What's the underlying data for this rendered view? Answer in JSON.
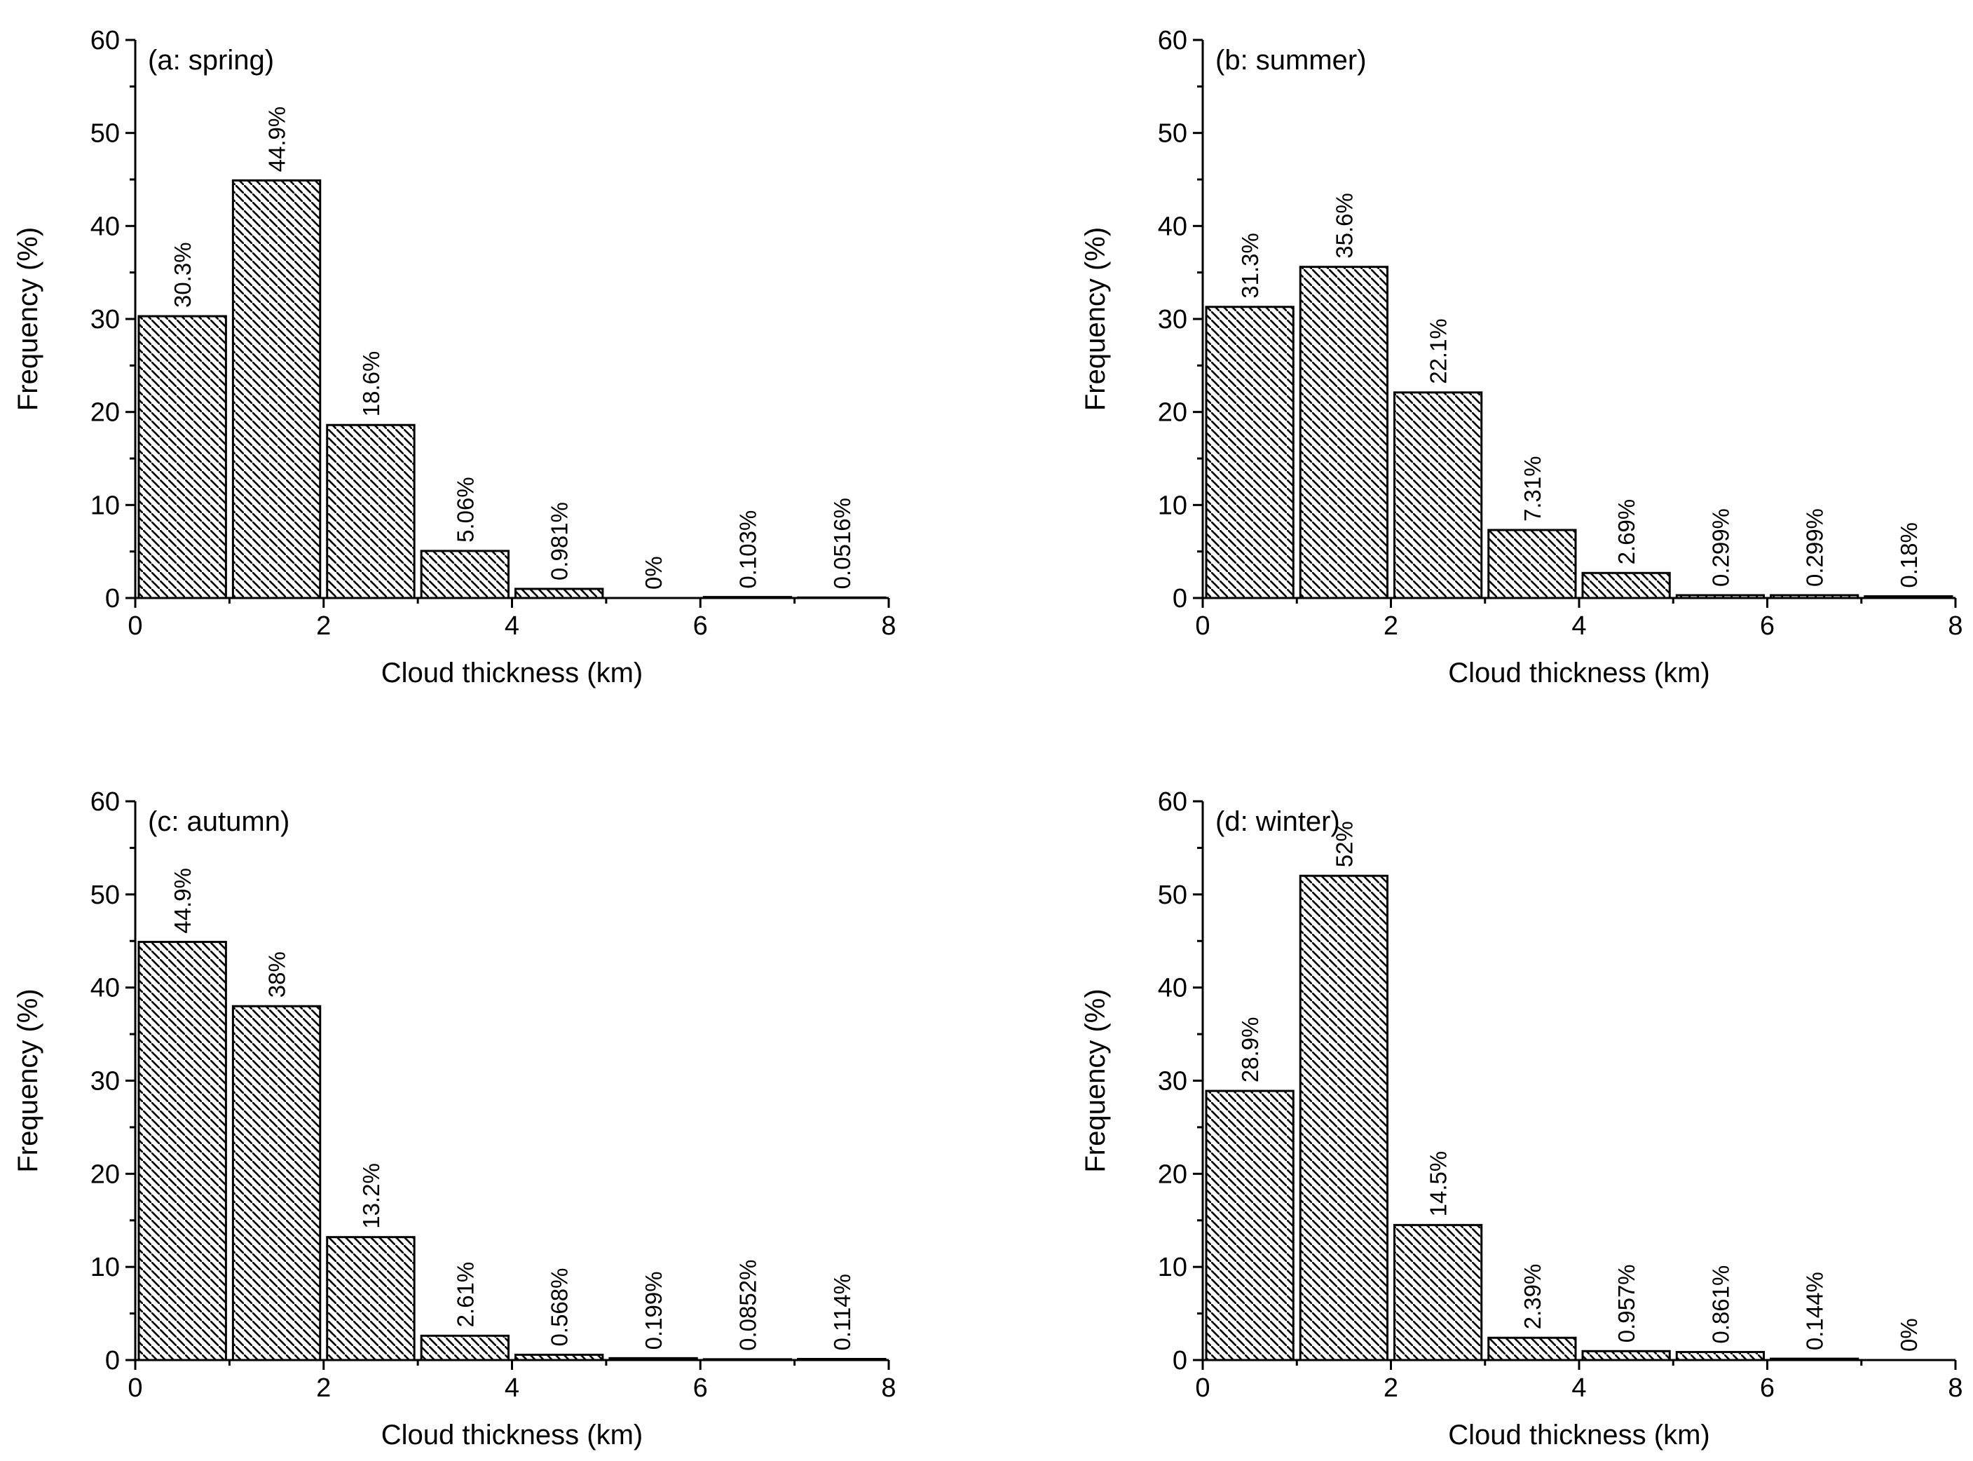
{
  "chart_data": [
    {
      "type": "bar",
      "title": "(a: spring)",
      "xlabel": "Cloud thickness (km)",
      "ylabel": "Frequency (%)",
      "x": [
        0.5,
        1.5,
        2.5,
        3.5,
        4.5,
        5.5,
        6.5,
        7.5
      ],
      "bin_width": 1,
      "values": [
        30.3,
        44.9,
        18.6,
        5.06,
        0.981,
        0,
        0.103,
        0.0516
      ],
      "labels": [
        "30.3%",
        "44.9%",
        "18.6%",
        "5.06%",
        "0.981%",
        "0%",
        "0.103%",
        "0.0516%"
      ],
      "xlim": [
        0,
        8
      ],
      "ylim": [
        0,
        60
      ],
      "xticks": [
        "0",
        "2",
        "4",
        "6",
        "8"
      ],
      "yticks": [
        "0",
        "10",
        "20",
        "30",
        "40",
        "50",
        "60"
      ]
    },
    {
      "type": "bar",
      "title": "(b: summer)",
      "xlabel": "Cloud thickness (km)",
      "ylabel": "Frequency (%)",
      "x": [
        0.5,
        1.5,
        2.5,
        3.5,
        4.5,
        5.5,
        6.5,
        7.5
      ],
      "bin_width": 1,
      "values": [
        31.3,
        35.6,
        22.1,
        7.31,
        2.69,
        0.299,
        0.299,
        0.18
      ],
      "labels": [
        "31.3%",
        "35.6%",
        "22.1%",
        "7.31%",
        "2.69%",
        "0.299%",
        "0.299%",
        "0.18%"
      ],
      "xlim": [
        0,
        8
      ],
      "ylim": [
        0,
        60
      ],
      "xticks": [
        "0",
        "2",
        "4",
        "6",
        "8"
      ],
      "yticks": [
        "0",
        "10",
        "20",
        "30",
        "40",
        "50",
        "60"
      ]
    },
    {
      "type": "bar",
      "title": "(c: autumn)",
      "xlabel": "Cloud thickness (km)",
      "ylabel": "Frequency (%)",
      "x": [
        0.5,
        1.5,
        2.5,
        3.5,
        4.5,
        5.5,
        6.5,
        7.5
      ],
      "bin_width": 1,
      "values": [
        44.9,
        38,
        13.2,
        2.61,
        0.568,
        0.199,
        0.0852,
        0.114
      ],
      "labels": [
        "44.9%",
        "38%",
        "13.2%",
        "2.61%",
        "0.568%",
        "0.199%",
        "0.0852%",
        "0.114%"
      ],
      "xlim": [
        0,
        8
      ],
      "ylim": [
        0,
        60
      ],
      "xticks": [
        "0",
        "2",
        "4",
        "6",
        "8"
      ],
      "yticks": [
        "0",
        "10",
        "20",
        "30",
        "40",
        "50",
        "60"
      ]
    },
    {
      "type": "bar",
      "title": "(d: winter)",
      "xlabel": "Cloud thickness (km)",
      "ylabel": "Frequency (%)",
      "x": [
        0.5,
        1.5,
        2.5,
        3.5,
        4.5,
        5.5,
        6.5,
        7.5
      ],
      "bin_width": 1,
      "values": [
        28.9,
        52,
        14.5,
        2.39,
        0.957,
        0.861,
        0.144,
        0
      ],
      "labels": [
        "28.9%",
        "52%",
        "14.5%",
        "2.39%",
        "0.957%",
        "0.861%",
        "0.144%",
        "0%"
      ],
      "xlim": [
        0,
        8
      ],
      "ylim": [
        0,
        60
      ],
      "xticks": [
        "0",
        "2",
        "4",
        "6",
        "8"
      ],
      "yticks": [
        "0",
        "10",
        "20",
        "30",
        "40",
        "50",
        "60"
      ]
    }
  ],
  "colors": {
    "axis": "#000000",
    "bar_fill_pattern": "diagonal-hatch",
    "bar_stroke": "#000000",
    "background": "#ffffff"
  }
}
